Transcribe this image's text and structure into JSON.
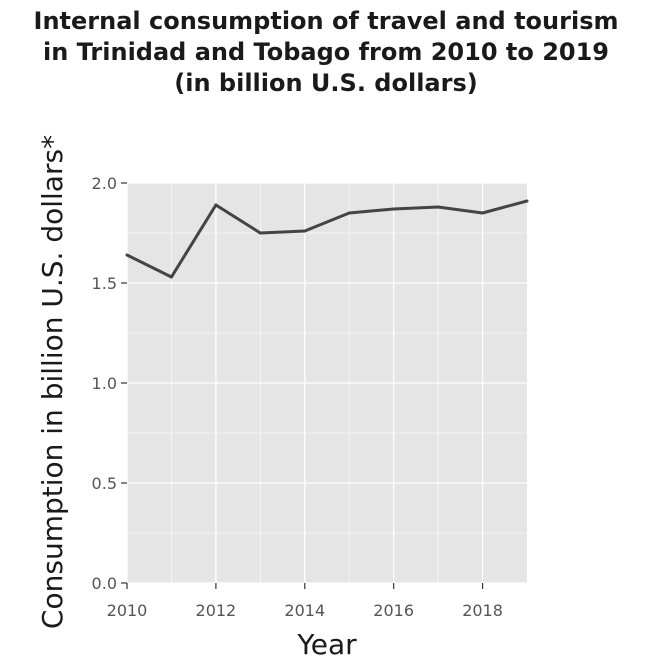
{
  "chart_data": {
    "type": "line",
    "title": [
      "Internal consumption of travel and tourism",
      "in Trinidad and Tobago from 2010 to 2019",
      "(in billion U.S. dollars)"
    ],
    "xlabel": "Year",
    "ylabel": "Consumption in billion U.S. dollars*",
    "x": [
      2010,
      2011,
      2012,
      2013,
      2014,
      2015,
      2016,
      2017,
      2018,
      2019
    ],
    "series": [
      {
        "values": [
          1.64,
          1.53,
          1.89,
          1.75,
          1.76,
          1.85,
          1.87,
          1.88,
          1.85,
          1.91
        ]
      }
    ],
    "xlim": [
      2010,
      2019
    ],
    "ylim": [
      0,
      2.0
    ],
    "xticks": [
      2010,
      2012,
      2014,
      2016,
      2018
    ],
    "xtick_labels": [
      "2010",
      "2012",
      "2014",
      "2016",
      "2018"
    ],
    "yticks": [
      0,
      0.5,
      1.0,
      1.5,
      2.0
    ],
    "ytick_labels": [
      "0.0",
      "0.5",
      "1.0",
      "1.5",
      "2.0"
    ],
    "grid": true,
    "colors": {
      "panel": "#e5e5e5",
      "grid": "#ffffff",
      "line": "#444444"
    }
  }
}
